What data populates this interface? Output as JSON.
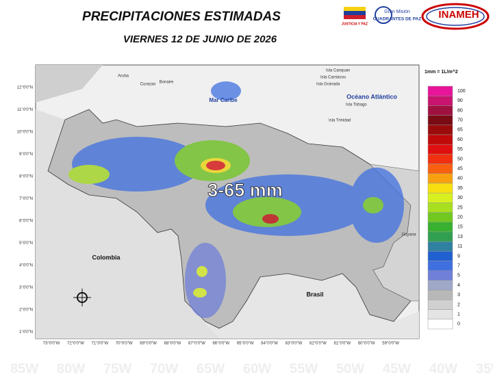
{
  "header": {
    "title": "PRECIPITACIONES ESTIMADAS",
    "subtitle": "VIERNES 12 DE JUNIO DE 2026"
  },
  "logos": {
    "ministry": "JUSTICIA Y PAZ",
    "mission_top": "Gran Misión",
    "mission_main": "CUADRANTES DE PAZ",
    "institute": "INAMEH"
  },
  "map": {
    "annotation": "3-65 mm",
    "labels": {
      "sea": "Mar Caribe",
      "ocean": "Océano Atlántico",
      "colombia": "Colombia",
      "brasil": "Brasil",
      "guyana": "Guyana",
      "aruba": "Aruba",
      "curazao": "Curazao",
      "bonaire": "Bonaire",
      "canquan": "Isla Canquan",
      "carriacou": "Isla Carriacou",
      "granada": "Isla Granada",
      "tobago": "Isla Tobago",
      "trinidad": "Isla Trinidad"
    },
    "lat_ticks": [
      "12°0'0\"N",
      "11°0'0\"N",
      "10°0'0\"N",
      "9°0'0\"N",
      "8°0'0\"N",
      "7°0'0\"N",
      "6°0'0\"N",
      "5°0'0\"N",
      "4°0'0\"N",
      "3°0'0\"N",
      "2°0'0\"N",
      "1°0'0\"N"
    ],
    "lon_ticks": [
      "73°0'0\"W",
      "72°0'0\"W",
      "71°0'0\"W",
      "70°0'0\"W",
      "69°0'0\"W",
      "68°0'0\"W",
      "67°0'0\"W",
      "66°0'0\"W",
      "65°0'0\"W",
      "64°0'0\"W",
      "63°0'0\"W",
      "62°0'0\"W",
      "61°0'0\"W",
      "60°0'0\"W",
      "59°0'0\"W"
    ],
    "background_lon": [
      "85W",
      "80W",
      "75W",
      "70W",
      "65W",
      "60W",
      "55W",
      "50W",
      "45W",
      "40W",
      "35W"
    ]
  },
  "legend": {
    "unit": "1mm = 1L/m^2",
    "levels": [
      {
        "value": 100,
        "color": "#e8149a"
      },
      {
        "value": 90,
        "color": "#c8146e"
      },
      {
        "value": 80,
        "color": "#a01040"
      },
      {
        "value": 70,
        "color": "#7a0a14"
      },
      {
        "value": 65,
        "color": "#9a0c0c"
      },
      {
        "value": 60,
        "color": "#c00a0a"
      },
      {
        "value": 55,
        "color": "#e01010"
      },
      {
        "value": 50,
        "color": "#f03010"
      },
      {
        "value": 45,
        "color": "#f86010"
      },
      {
        "value": 40,
        "color": "#f8a010"
      },
      {
        "value": 35,
        "color": "#f8e010"
      },
      {
        "value": 30,
        "color": "#d8f020"
      },
      {
        "value": 25,
        "color": "#a8e020"
      },
      {
        "value": 20,
        "color": "#70c820"
      },
      {
        "value": 15,
        "color": "#38b030"
      },
      {
        "value": 13,
        "color": "#30a050"
      },
      {
        "value": 11,
        "color": "#3080a0"
      },
      {
        "value": 9,
        "color": "#2060d0"
      },
      {
        "value": 7,
        "color": "#4070e0"
      },
      {
        "value": 5,
        "color": "#7080d8"
      },
      {
        "value": 4,
        "color": "#a0a8c8"
      },
      {
        "value": 3,
        "color": "#b8b8b8"
      },
      {
        "value": 2,
        "color": "#d0d0d0"
      },
      {
        "value": 1,
        "color": "#e4e4e4"
      },
      {
        "value": 0,
        "color": "#ffffff"
      }
    ]
  }
}
